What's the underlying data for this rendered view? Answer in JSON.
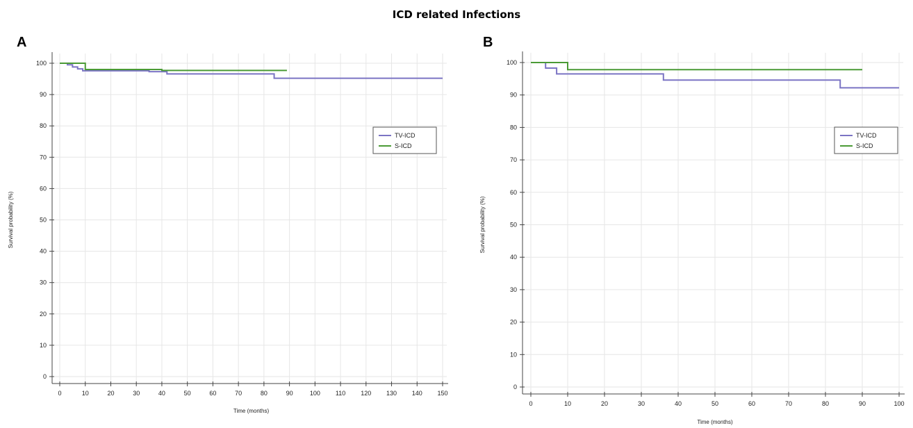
{
  "title": "ICD related Infections",
  "chart_data": [
    {
      "panel": "A",
      "type": "line",
      "step": true,
      "xlabel": "Time (months)",
      "ylabel": "Survival probability (%)",
      "xlim": [
        0,
        150
      ],
      "ylim": [
        0,
        100
      ],
      "xticks": [
        0,
        10,
        20,
        30,
        40,
        50,
        60,
        70,
        80,
        90,
        100,
        110,
        120,
        130,
        140,
        150
      ],
      "yticks": [
        0,
        10,
        20,
        30,
        40,
        50,
        60,
        70,
        80,
        90,
        100
      ],
      "grid": true,
      "legend_position": "right",
      "series": [
        {
          "name": "TV-ICD",
          "color": "#7b74c4",
          "x": [
            0,
            3,
            5,
            7,
            9,
            35,
            42,
            84,
            150
          ],
          "y": [
            100,
            99.5,
            98.8,
            98.2,
            97.6,
            97.3,
            96.6,
            95.2,
            95.2
          ]
        },
        {
          "name": "S-ICD",
          "color": "#4a9a35",
          "x": [
            0,
            10,
            40,
            89
          ],
          "y": [
            100,
            98.0,
            97.7,
            97.7
          ]
        }
      ]
    },
    {
      "panel": "B",
      "type": "line",
      "step": true,
      "xlabel": "Time (months)",
      "ylabel": "Survival probability (%)",
      "xlim": [
        0,
        100
      ],
      "ylim": [
        0,
        100
      ],
      "xticks": [
        0,
        10,
        20,
        30,
        40,
        50,
        60,
        70,
        80,
        90,
        100
      ],
      "yticks": [
        0,
        10,
        20,
        30,
        40,
        50,
        60,
        70,
        80,
        90,
        100
      ],
      "grid": true,
      "legend_position": "right",
      "series": [
        {
          "name": "TV-ICD",
          "color": "#7b74c4",
          "x": [
            0,
            4,
            7,
            36,
            84,
            100
          ],
          "y": [
            100,
            98.3,
            96.5,
            94.6,
            92.2,
            92.2
          ]
        },
        {
          "name": "S-ICD",
          "color": "#4a9a35",
          "x": [
            0,
            10,
            90
          ],
          "y": [
            100,
            97.8,
            97.8
          ]
        }
      ]
    }
  ]
}
